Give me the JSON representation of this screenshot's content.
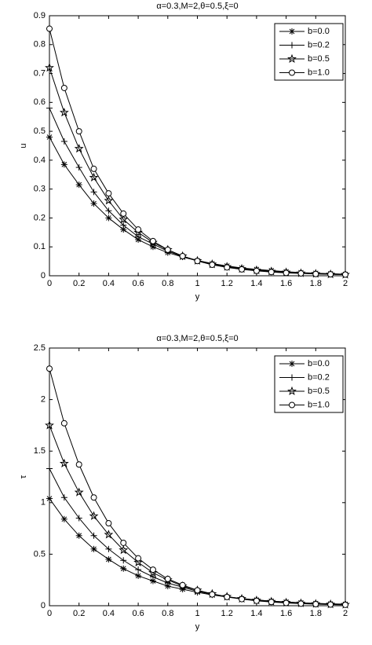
{
  "chart_data": [
    {
      "type": "line",
      "title": "α=0.3,M=2,θ=0.5,ξ=0",
      "x_label": "y",
      "y_label": "u",
      "x": [
        0,
        0.1,
        0.2,
        0.3,
        0.4,
        0.5,
        0.6,
        0.7,
        0.8,
        0.9,
        1.0,
        1.1,
        1.2,
        1.3,
        1.4,
        1.5,
        1.6,
        1.7,
        1.8,
        1.9,
        2.0
      ],
      "series": [
        {
          "name": "b=0.0",
          "color": "#000000",
          "marker": "*",
          "values": [
            0.48,
            0.385,
            0.315,
            0.25,
            0.2,
            0.16,
            0.125,
            0.1,
            0.08,
            0.065,
            0.052,
            0.042,
            0.034,
            0.027,
            0.022,
            0.018,
            0.014,
            0.011,
            0.009,
            0.007,
            0.005
          ]
        },
        {
          "name": "b=0.2",
          "color": "#000000",
          "marker": "+",
          "values": [
            0.58,
            0.465,
            0.375,
            0.29,
            0.225,
            0.175,
            0.135,
            0.11,
            0.085,
            0.067,
            0.053,
            0.042,
            0.033,
            0.026,
            0.021,
            0.017,
            0.013,
            0.01,
            0.008,
            0.006,
            0.005
          ]
        },
        {
          "name": "b=0.5",
          "color": "#000000",
          "marker": "p",
          "values": [
            0.72,
            0.565,
            0.44,
            0.34,
            0.26,
            0.195,
            0.15,
            0.115,
            0.09,
            0.068,
            0.052,
            0.04,
            0.031,
            0.024,
            0.019,
            0.015,
            0.012,
            0.009,
            0.007,
            0.005,
            0.004
          ]
        },
        {
          "name": "b=1.0",
          "color": "#000000",
          "marker": "o",
          "values": [
            0.855,
            0.65,
            0.5,
            0.37,
            0.285,
            0.215,
            0.16,
            0.12,
            0.09,
            0.068,
            0.051,
            0.038,
            0.029,
            0.022,
            0.017,
            0.013,
            0.01,
            0.008,
            0.006,
            0.005,
            0.004
          ]
        }
      ],
      "xlim": [
        0,
        2
      ],
      "xticks": [
        0,
        0.2,
        0.4,
        0.6,
        0.8,
        1,
        1.2,
        1.4,
        1.6,
        1.8,
        2
      ],
      "ylim": [
        0,
        0.9
      ],
      "yticks": [
        0,
        0.1,
        0.2,
        0.3,
        0.4,
        0.5,
        0.6,
        0.7,
        0.8,
        0.9
      ],
      "legend": "upper right"
    },
    {
      "type": "line",
      "title": "α=0.3,M=2,θ=0.5,ξ=0",
      "x_label": "y",
      "y_label": "τ",
      "x": [
        0,
        0.1,
        0.2,
        0.3,
        0.4,
        0.5,
        0.6,
        0.7,
        0.8,
        0.9,
        1.0,
        1.1,
        1.2,
        1.3,
        1.4,
        1.5,
        1.6,
        1.7,
        1.8,
        1.9,
        2.0
      ],
      "series": [
        {
          "name": "b=0.0",
          "color": "#000000",
          "marker": "*",
          "values": [
            1.04,
            0.84,
            0.68,
            0.55,
            0.45,
            0.36,
            0.29,
            0.24,
            0.19,
            0.16,
            0.13,
            0.105,
            0.085,
            0.07,
            0.056,
            0.045,
            0.036,
            0.029,
            0.023,
            0.018,
            0.015
          ]
        },
        {
          "name": "b=0.2",
          "color": "#000000",
          "marker": "+",
          "values": [
            1.33,
            1.05,
            0.85,
            0.68,
            0.55,
            0.44,
            0.35,
            0.28,
            0.22,
            0.18,
            0.14,
            0.11,
            0.088,
            0.07,
            0.055,
            0.044,
            0.035,
            0.027,
            0.021,
            0.017,
            0.013
          ]
        },
        {
          "name": "b=0.5",
          "color": "#000000",
          "marker": "p",
          "values": [
            1.75,
            1.38,
            1.1,
            0.87,
            0.69,
            0.54,
            0.42,
            0.32,
            0.25,
            0.19,
            0.15,
            0.115,
            0.088,
            0.068,
            0.052,
            0.04,
            0.031,
            0.024,
            0.018,
            0.014,
            0.011
          ]
        },
        {
          "name": "b=1.0",
          "color": "#000000",
          "marker": "o",
          "values": [
            2.3,
            1.77,
            1.37,
            1.05,
            0.8,
            0.61,
            0.46,
            0.35,
            0.26,
            0.2,
            0.15,
            0.11,
            0.085,
            0.064,
            0.048,
            0.036,
            0.027,
            0.02,
            0.015,
            0.011,
            0.009
          ]
        }
      ],
      "xlim": [
        0,
        2
      ],
      "xticks": [
        0,
        0.2,
        0.4,
        0.6,
        0.8,
        1,
        1.2,
        1.4,
        1.6,
        1.8,
        2
      ],
      "ylim": [
        0,
        2.5
      ],
      "yticks": [
        0,
        0.5,
        1,
        1.5,
        2,
        2.5
      ],
      "legend": "upper right"
    }
  ]
}
